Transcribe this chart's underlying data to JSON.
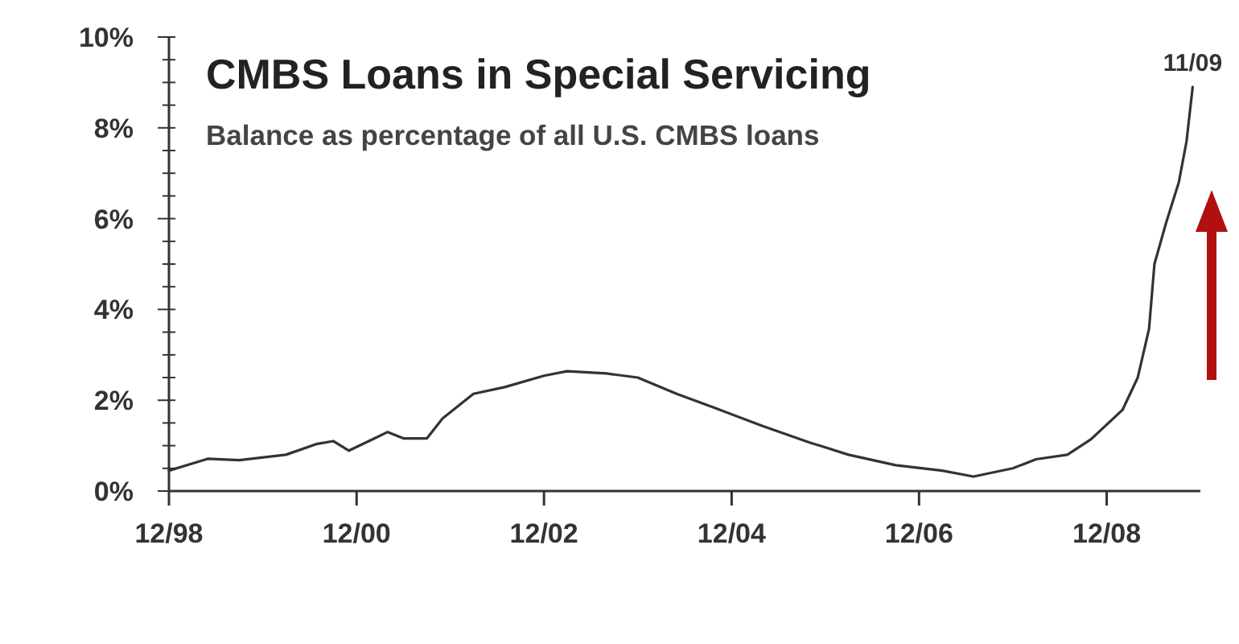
{
  "chart_data": {
    "type": "line",
    "title": "CMBS Loans in Special Servicing",
    "subtitle": "Balance as percentage of all U.S. CMBS loans",
    "x": [
      "1998-12",
      "1999-05",
      "1999-09",
      "2000-03",
      "2000-07",
      "2000-09",
      "2000-11",
      "2001-02",
      "2001-04",
      "2001-06",
      "2001-09",
      "2001-11",
      "2002-03",
      "2002-07",
      "2002-12",
      "2003-03",
      "2003-08",
      "2003-12",
      "2004-05",
      "2004-10",
      "2005-04",
      "2005-10",
      "2006-03",
      "2006-09",
      "2007-03",
      "2007-07",
      "2007-12",
      "2008-03",
      "2008-07",
      "2008-10",
      "2009-02",
      "2009-04",
      "2009-05-15",
      "2009-06-05",
      "2009-07-20",
      "2009-09-08",
      "2009-10-08",
      "2009-11"
    ],
    "series": [
      {
        "color": "#333333",
        "values": [
          0.45,
          0.71,
          0.68,
          0.8,
          1.04,
          1.1,
          0.89,
          1.14,
          1.3,
          1.16,
          1.16,
          1.6,
          2.14,
          2.29,
          2.54,
          2.64,
          2.59,
          2.5,
          2.14,
          1.82,
          1.43,
          1.07,
          0.8,
          0.57,
          0.45,
          0.32,
          0.5,
          0.7,
          0.8,
          1.14,
          1.79,
          2.5,
          3.57,
          5.0,
          5.9,
          6.8,
          7.7,
          8.9
        ]
      }
    ],
    "xlim": [
      "1998-12",
      "2009-12"
    ],
    "xticks": [
      {
        "value": "1998-12",
        "label": "12/98"
      },
      {
        "value": "2000-12",
        "label": "12/00"
      },
      {
        "value": "2002-12",
        "label": "12/02"
      },
      {
        "value": "2004-12",
        "label": "12/04"
      },
      {
        "value": "2006-12",
        "label": "12/06"
      },
      {
        "value": "2008-12",
        "label": "12/08"
      }
    ],
    "ylim": [
      0,
      10
    ],
    "yticks": [
      {
        "value": 0,
        "label": "0%"
      },
      {
        "value": 0.5,
        "label": null
      },
      {
        "value": 1,
        "label": null
      },
      {
        "value": 1.5,
        "label": null
      },
      {
        "value": 2,
        "label": "2%"
      },
      {
        "value": 2.5,
        "label": null
      },
      {
        "value": 3,
        "label": null
      },
      {
        "value": 3.5,
        "label": null
      },
      {
        "value": 4,
        "label": "4%"
      },
      {
        "value": 4.5,
        "label": null
      },
      {
        "value": 5,
        "label": null
      },
      {
        "value": 5.5,
        "label": null
      },
      {
        "value": 6,
        "label": "6%"
      },
      {
        "value": 6.5,
        "label": null
      },
      {
        "value": 7,
        "label": null
      },
      {
        "value": 7.5,
        "label": null
      },
      {
        "value": 8,
        "label": "8%"
      },
      {
        "value": 8.5,
        "label": null
      },
      {
        "value": 9,
        "label": null
      },
      {
        "value": 9.5,
        "label": null
      },
      {
        "value": 10,
        "label": "10%"
      }
    ],
    "annotations": [
      {
        "text": "11/09",
        "x": "2009-11",
        "y": 8.9
      }
    ],
    "grid": false,
    "marker": "none",
    "line_style": "solid"
  }
}
